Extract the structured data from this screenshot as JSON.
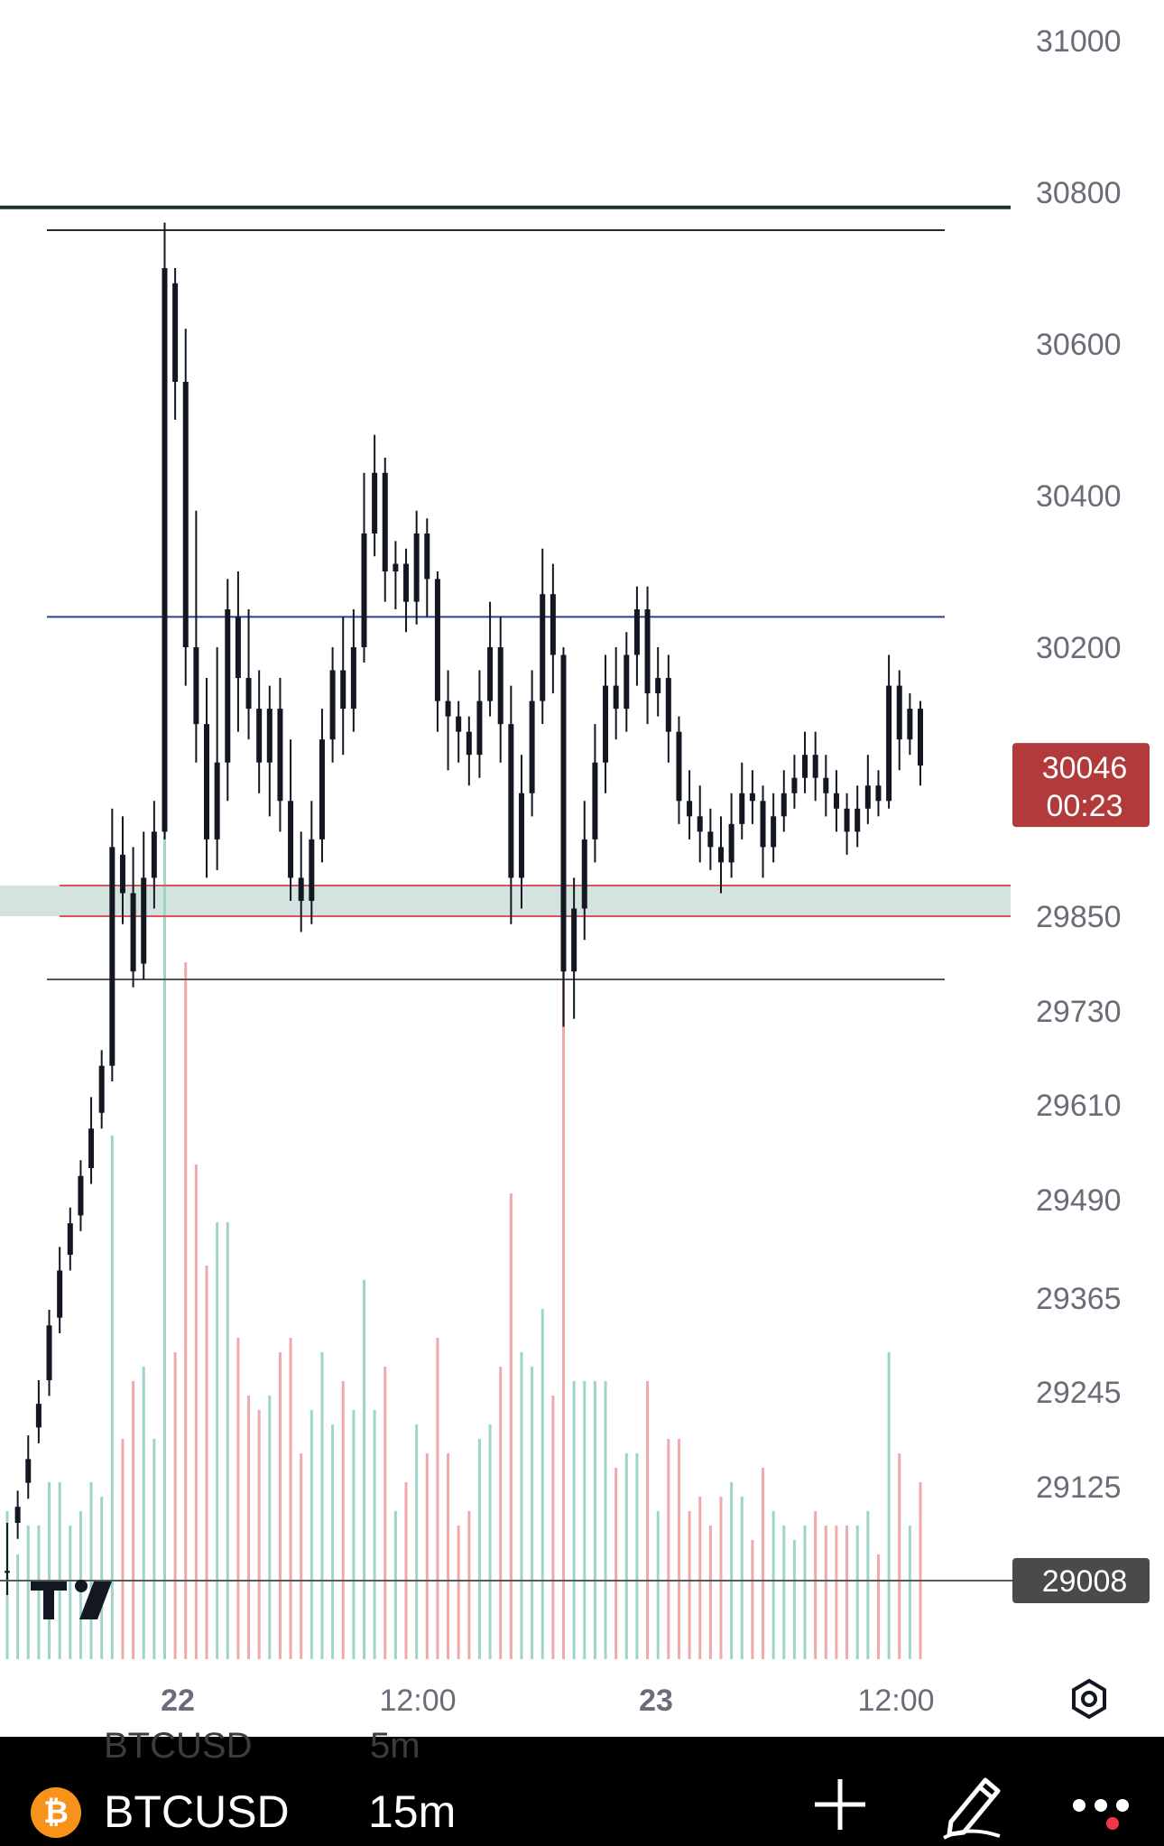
{
  "chart_data": {
    "type": "candlestick",
    "symbol": "BTCUSD",
    "interval": "15m",
    "x_tick_labels": [
      {
        "label": "22",
        "bold": true
      },
      {
        "label": "12:00",
        "bold": false
      },
      {
        "label": "23",
        "bold": true
      },
      {
        "label": "12:00",
        "bold": false
      }
    ],
    "y_tick_labels": [
      "31000",
      "30800",
      "30600",
      "30400",
      "30200",
      "29850",
      "29730",
      "29610",
      "29490",
      "29365",
      "29245",
      "29125"
    ],
    "current_price": {
      "value": "30046",
      "countdown": "00:23",
      "color": "#b33a3a"
    },
    "reference_price": {
      "value": "29008",
      "color": "#4a4a4d"
    },
    "horizontal_lines": [
      {
        "price": 30780,
        "color": "#1c3526"
      },
      {
        "price": 30750,
        "color": "#2a2a2a"
      },
      {
        "price": 30240,
        "color": "#2b3f94"
      },
      {
        "price": 29890,
        "color": "#d9545c"
      },
      {
        "price": 29850,
        "color": "#d9545c"
      },
      {
        "price": 29770,
        "color": "#555555"
      }
    ],
    "zone": {
      "from": 29850,
      "to": 29890,
      "color": "#d3e3de"
    },
    "candle_color": "#131722",
    "volume_up_color": "#9fd4c8",
    "volume_down_color": "#f0a8a8",
    "ohlc_points": [
      [
        29020,
        29020,
        28990,
        29080
      ],
      [
        29080,
        29100,
        29060,
        29120
      ],
      [
        29130,
        29160,
        29110,
        29190
      ],
      [
        29200,
        29230,
        29180,
        29260
      ],
      [
        29260,
        29330,
        29240,
        29350
      ],
      [
        29340,
        29400,
        29320,
        29430
      ],
      [
        29420,
        29460,
        29400,
        29480
      ],
      [
        29470,
        29520,
        29450,
        29540
      ],
      [
        29530,
        29580,
        29510,
        29620
      ],
      [
        29600,
        29660,
        29580,
        29680
      ],
      [
        29660,
        29940,
        29640,
        29990
      ],
      [
        29930,
        29880,
        29840,
        29980
      ],
      [
        29880,
        29780,
        29760,
        29940
      ],
      [
        29790,
        29900,
        29770,
        29960
      ],
      [
        29900,
        29960,
        29860,
        30000
      ],
      [
        29960,
        30700,
        29950,
        30760
      ],
      [
        30680,
        30550,
        30500,
        30700
      ],
      [
        30550,
        30200,
        30150,
        30620
      ],
      [
        30200,
        30100,
        30050,
        30380
      ],
      [
        30100,
        29950,
        29900,
        30160
      ],
      [
        29950,
        30050,
        29910,
        30200
      ],
      [
        30050,
        30250,
        30000,
        30290
      ],
      [
        30240,
        30160,
        30090,
        30300
      ],
      [
        30160,
        30120,
        30080,
        30250
      ],
      [
        30120,
        30050,
        30010,
        30170
      ],
      [
        30050,
        30120,
        29980,
        30150
      ],
      [
        30120,
        30000,
        29960,
        30160
      ],
      [
        30000,
        29900,
        29870,
        30080
      ],
      [
        29900,
        29870,
        29830,
        29960
      ],
      [
        29870,
        29950,
        29840,
        30000
      ],
      [
        29950,
        30080,
        29920,
        30120
      ],
      [
        30080,
        30170,
        30050,
        30200
      ],
      [
        30170,
        30120,
        30060,
        30240
      ],
      [
        30120,
        30200,
        30090,
        30250
      ],
      [
        30200,
        30350,
        30180,
        30430
      ],
      [
        30350,
        30430,
        30320,
        30480
      ],
      [
        30430,
        30300,
        30260,
        30450
      ],
      [
        30300,
        30310,
        30250,
        30340
      ],
      [
        30310,
        30260,
        30220,
        30330
      ],
      [
        30260,
        30350,
        30230,
        30380
      ],
      [
        30350,
        30290,
        30240,
        30370
      ],
      [
        30290,
        30130,
        30090,
        30300
      ],
      [
        30130,
        30110,
        30040,
        30170
      ],
      [
        30110,
        30090,
        30050,
        30130
      ],
      [
        30090,
        30060,
        30020,
        30110
      ],
      [
        30060,
        30130,
        30030,
        30170
      ],
      [
        30130,
        30200,
        30110,
        30260
      ],
      [
        30200,
        30100,
        30050,
        30240
      ],
      [
        30100,
        29900,
        29840,
        30150
      ],
      [
        29900,
        30010,
        29860,
        30060
      ],
      [
        30010,
        30130,
        29980,
        30170
      ],
      [
        30130,
        30270,
        30100,
        30330
      ],
      [
        30270,
        30190,
        30140,
        30310
      ],
      [
        30190,
        29780,
        29710,
        30200
      ],
      [
        29780,
        29860,
        29720,
        29900
      ],
      [
        29860,
        29950,
        29820,
        30000
      ],
      [
        29950,
        30050,
        29920,
        30100
      ],
      [
        30050,
        30150,
        30010,
        30190
      ],
      [
        30150,
        30120,
        30080,
        30200
      ],
      [
        30120,
        30190,
        30090,
        30220
      ],
      [
        30190,
        30250,
        30150,
        30280
      ],
      [
        30250,
        30140,
        30100,
        30280
      ],
      [
        30140,
        30160,
        30110,
        30200
      ],
      [
        30160,
        30090,
        30050,
        30190
      ],
      [
        30090,
        30000,
        29970,
        30110
      ],
      [
        30000,
        29980,
        29950,
        30040
      ],
      [
        29980,
        29960,
        29920,
        30020
      ],
      [
        29960,
        29940,
        29910,
        29990
      ],
      [
        29940,
        29920,
        29880,
        29980
      ],
      [
        29920,
        29970,
        29900,
        30010
      ],
      [
        29970,
        30010,
        29950,
        30050
      ],
      [
        30010,
        30000,
        29970,
        30040
      ],
      [
        30000,
        29940,
        29900,
        30020
      ],
      [
        29940,
        29980,
        29920,
        30010
      ],
      [
        29980,
        30010,
        29960,
        30040
      ],
      [
        30010,
        30030,
        29990,
        30060
      ],
      [
        30030,
        30060,
        30010,
        30090
      ],
      [
        30060,
        30030,
        30000,
        30090
      ],
      [
        30030,
        30010,
        29980,
        30060
      ],
      [
        30010,
        29990,
        29960,
        30040
      ],
      [
        29990,
        29960,
        29930,
        30010
      ],
      [
        29960,
        29990,
        29940,
        30020
      ],
      [
        29990,
        30020,
        29970,
        30060
      ],
      [
        30020,
        30000,
        29980,
        30040
      ],
      [
        30000,
        30150,
        29990,
        30190
      ],
      [
        30150,
        30080,
        30040,
        30170
      ],
      [
        30080,
        30120,
        30060,
        30140
      ],
      [
        30120,
        30046,
        30020,
        30130
      ]
    ]
  },
  "toolbar": {
    "symbol": "BTCUSD",
    "interval": "15m",
    "ghost_symbol": "BTCUSD",
    "ghost_interval": "5m",
    "coin_glyph": "₿",
    "logo_text": "TV",
    "icons": [
      "bitcoin-icon",
      "plus-icon",
      "pencil-icon",
      "more-icon",
      "settings-icon",
      "tradingview-logo"
    ]
  }
}
